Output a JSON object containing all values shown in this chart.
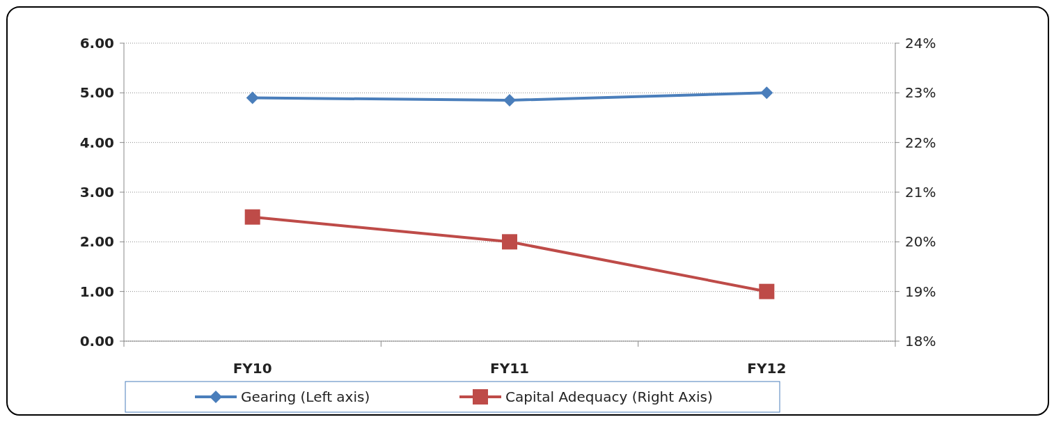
{
  "chart_data": {
    "type": "line",
    "categories": [
      "FY10",
      "FY11",
      "FY12"
    ],
    "series": [
      {
        "name": "Gearing (Left axis)",
        "color": "#4a7ebb",
        "values": [
          4.9,
          4.85,
          5.0
        ],
        "marker": "diamond"
      },
      {
        "name": "Capital Adequacy (Right Axis)",
        "color": "#be4b48",
        "values": [
          20.5,
          20.0,
          19.0
        ],
        "axis": "y2",
        "marker": "square"
      }
    ],
    "ylim": [
      0,
      6
    ],
    "yticks": [
      {
        "value": 0,
        "label": "0.00"
      },
      {
        "value": 1,
        "label": "1.00"
      },
      {
        "value": 2,
        "label": "2.00"
      },
      {
        "value": 3,
        "label": "3.00"
      },
      {
        "value": 4,
        "label": "4.00"
      },
      {
        "value": 5,
        "label": "5.00"
      },
      {
        "value": 6,
        "label": "6.00"
      }
    ],
    "y2lim": [
      18,
      24
    ],
    "y2ticks": [
      {
        "value": 18,
        "label": "18%"
      },
      {
        "value": 19,
        "label": "19%"
      },
      {
        "value": 20,
        "label": "20%"
      },
      {
        "value": 21,
        "label": "21%"
      },
      {
        "value": 22,
        "label": "22%"
      },
      {
        "value": 23,
        "label": "23%"
      },
      {
        "value": 24,
        "label": "24%"
      }
    ],
    "grid": "y",
    "legend": "bottom",
    "line_style": "solid"
  }
}
